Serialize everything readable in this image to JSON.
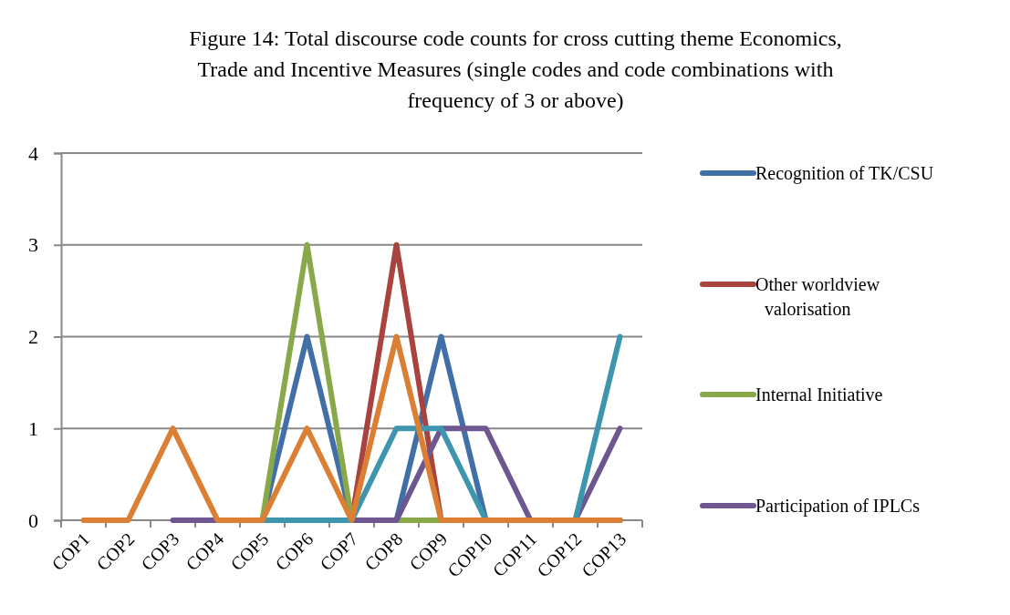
{
  "chart_data": {
    "type": "line",
    "title": "Figure 14: Total discourse code counts for cross cutting theme Economics, Trade and Incentive Measures (single codes and code combinations with frequency of 3 or above)",
    "categories": [
      "COP1",
      "COP2",
      "COP3",
      "COP4",
      "COP5",
      "COP6",
      "COP7",
      "COP8",
      "COP9",
      "COP10",
      "COP11",
      "COP12",
      "COP13"
    ],
    "series": [
      {
        "name": "Recognition of TK/CSU",
        "color": "#4170a8",
        "values": [
          null,
          null,
          null,
          0,
          0,
          2,
          0,
          0,
          2,
          0,
          0,
          0,
          0
        ]
      },
      {
        "name": "Other worldview valorisation",
        "color": "#a8433f",
        "values": [
          null,
          null,
          null,
          0,
          0,
          0,
          0,
          3,
          0,
          0,
          0,
          0,
          0
        ]
      },
      {
        "name": "Internal Initiative",
        "color": "#88a84a",
        "values": [
          null,
          null,
          null,
          0,
          0,
          3,
          0,
          0,
          0,
          0,
          0,
          0,
          0
        ]
      },
      {
        "name": "Participation of IPLCs",
        "color": "#6e5690",
        "values": [
          null,
          null,
          0,
          0,
          0,
          0,
          0,
          0,
          1,
          1,
          0,
          0,
          1
        ]
      },
      {
        "color": "#3e96ae",
        "values": [
          null,
          null,
          null,
          0,
          0,
          0,
          0,
          1,
          1,
          0,
          0,
          0,
          2
        ]
      },
      {
        "color": "#db7f35",
        "values": [
          0,
          0,
          1,
          0,
          0,
          1,
          0,
          2,
          0,
          0,
          0,
          0,
          0
        ]
      }
    ],
    "ylim": [
      0,
      4
    ],
    "yticks": [
      0,
      1,
      2,
      3,
      4
    ],
    "grid": "y",
    "legend": "right",
    "marker": "none",
    "line_style": "solid"
  }
}
